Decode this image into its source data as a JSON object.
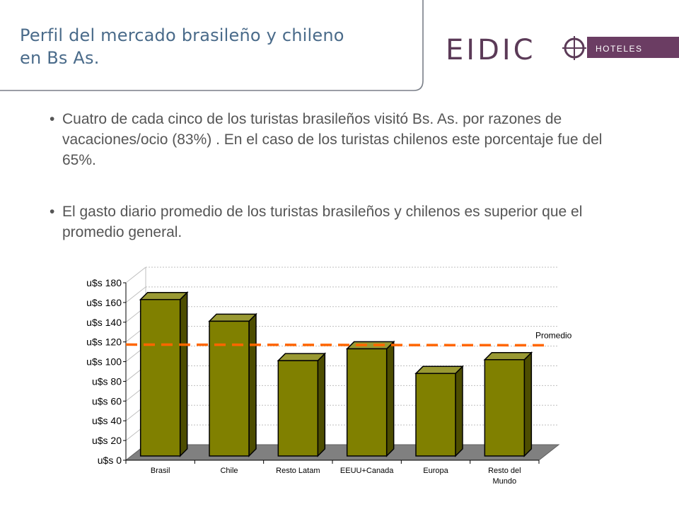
{
  "header": {
    "title_line1": "Perfil del mercado brasileño y chileno",
    "title_line2": "en Bs As."
  },
  "logo": {
    "wordmark": "EIDIC",
    "tag": "HOTELES",
    "colors": {
      "wordmark": "#5b3a57",
      "tag_band": "#6b3d63",
      "tag_text": "#ffffff"
    }
  },
  "bullets": [
    "Cuatro de cada cinco de los turistas brasileños visitó Bs. As. por razones de vacaciones/ocio (83%) . En el caso de los turistas chilenos este porcentaje fue del 65%.",
    "El gasto diario promedio de los turistas brasileños y chilenos es superior que el promedio general."
  ],
  "chart_data": {
    "type": "bar",
    "categories": [
      "Brasil",
      "Chile",
      "Resto Latam",
      "EEUU+Canada",
      "Europa",
      "Resto del Mundo"
    ],
    "category_lines": [
      [
        "Brasil"
      ],
      [
        "Chile"
      ],
      [
        "Resto Latam"
      ],
      [
        "EEUU+Canada"
      ],
      [
        "Europa"
      ],
      [
        "Resto del",
        "Mundo"
      ]
    ],
    "values": [
      163,
      141,
      101,
      113,
      88,
      102
    ],
    "ylim": [
      0,
      180
    ],
    "yticks": [
      0,
      20,
      40,
      60,
      80,
      100,
      120,
      140,
      160,
      180
    ],
    "ytick_prefix": "u$s ",
    "reference_line": {
      "label": "Promedio",
      "value": 113
    },
    "grid": true,
    "bar_style": "3d",
    "colors": {
      "bar": "#808000",
      "bar_side": "#4d4d00",
      "bar_top": "#999933",
      "reference": "#ff6600",
      "floor": "#808080"
    }
  }
}
